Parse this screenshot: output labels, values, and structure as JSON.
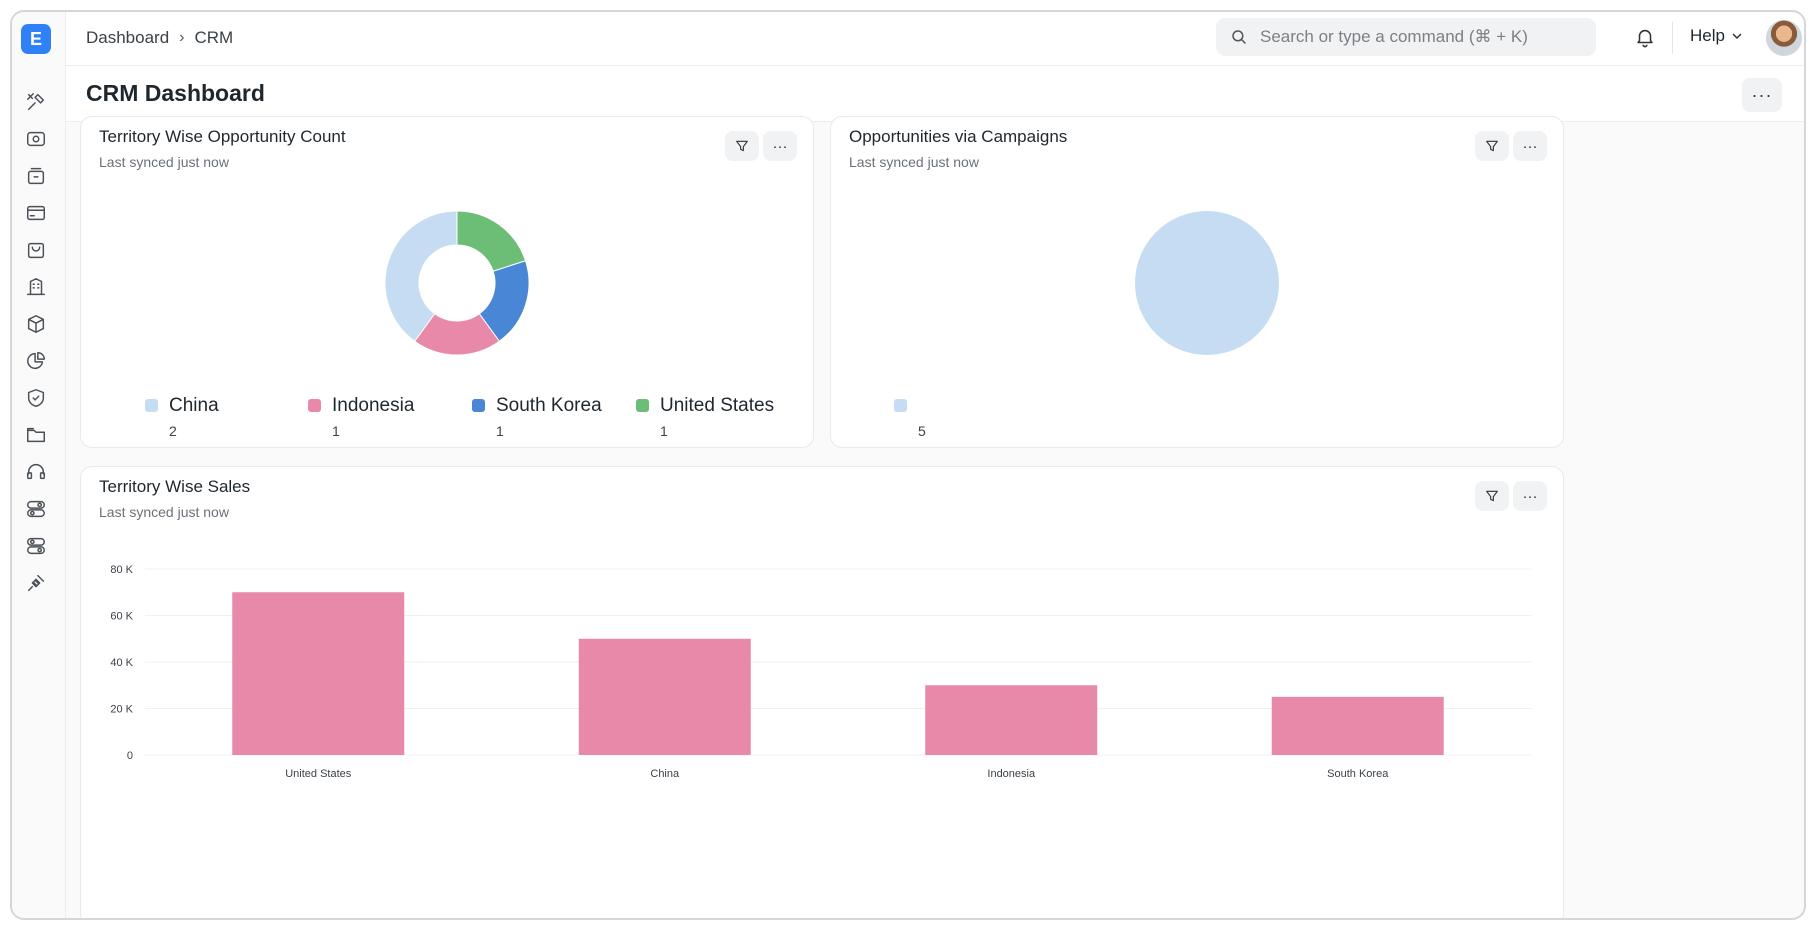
{
  "app": {
    "logo_letter": "E",
    "brand_color": "#2f81f7"
  },
  "sidebar": {
    "icons": [
      "tools-icon",
      "eye-icon",
      "archive-icon",
      "window-icon",
      "bag-icon",
      "building-icon",
      "box-icon",
      "pie-icon",
      "shield-icon",
      "folder-icon",
      "headset-icon",
      "toggle-icon",
      "toggle-alt-icon",
      "plug-icon"
    ]
  },
  "topbar": {
    "breadcrumbs": [
      "Dashboard",
      "CRM"
    ],
    "search_placeholder": "Search or type a command (⌘ + K)",
    "help_label": "Help"
  },
  "page": {
    "title": "CRM Dashboard"
  },
  "cards": {
    "territory_count": {
      "title": "Territory Wise Opportunity Count",
      "subtitle": "Last synced just now"
    },
    "campaigns": {
      "title": "Opportunities via Campaigns",
      "subtitle": "Last synced just now"
    },
    "territory_sales": {
      "title": "Territory Wise Sales",
      "subtitle": "Last synced just now"
    }
  },
  "chart_data": [
    {
      "type": "pie",
      "variant": "donut",
      "title": "Territory Wise Opportunity Count",
      "categories": [
        "China",
        "Indonesia",
        "South Korea",
        "United States"
      ],
      "values": [
        2,
        1,
        1,
        1
      ],
      "colors": [
        "#c5dcf3",
        "#e889aa",
        "#4a86d6",
        "#6cbd75"
      ],
      "legend": "bottom"
    },
    {
      "type": "pie",
      "title": "Opportunities via Campaigns",
      "categories": [
        ""
      ],
      "values": [
        5
      ],
      "colors": [
        "#c5dcf3"
      ],
      "legend": "bottom"
    },
    {
      "type": "bar",
      "title": "Territory Wise Sales",
      "categories": [
        "United States",
        "China",
        "Indonesia",
        "South Korea"
      ],
      "values": [
        70000,
        50000,
        30000,
        25000
      ],
      "color": "#e889aa",
      "ylim": [
        0,
        80000
      ],
      "yticks": [
        "0",
        "20 K",
        "40 K",
        "60 K",
        "80 K"
      ],
      "grid": true
    }
  ]
}
